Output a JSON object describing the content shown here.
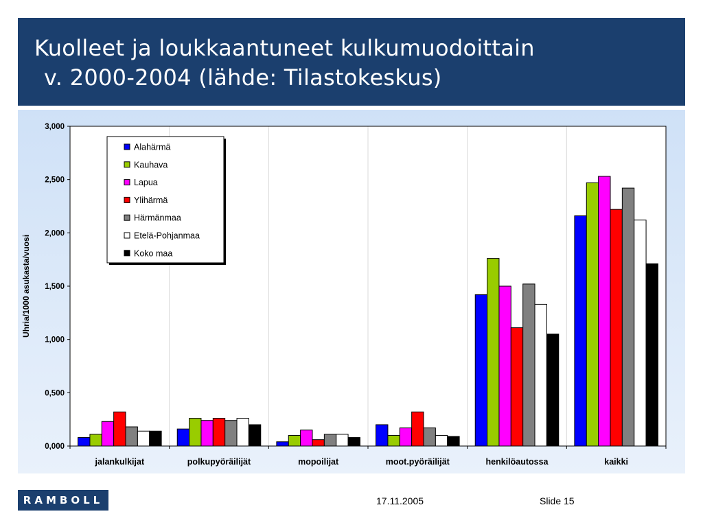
{
  "slide": {
    "title_line1": "Kuolleet ja loukkaantuneet kulkumuodoittain",
    "title_line2": "v. 2000-2004 (lähde: Tilastokeskus)",
    "logo": "RAMBOLL",
    "date": "17.11.2005",
    "slide_number": "Slide 15",
    "colors": {
      "title_band": "#1b3f6e",
      "panel_top": "#cfe1f7",
      "panel_bottom": "#e9f1fb"
    }
  },
  "chart_data": {
    "type": "bar",
    "title": "",
    "xlabel": "",
    "ylabel": "Uhria/1000 asukasta/vuosi",
    "ylim": [
      0,
      3
    ],
    "yticks": [
      0,
      0.5,
      1,
      1.5,
      2,
      2.5,
      3
    ],
    "ytick_labels": [
      "0,000",
      "0,500",
      "1,000",
      "1,500",
      "2,000",
      "2,500",
      "3,000"
    ],
    "grid": "vertical",
    "legend_position": "top-left",
    "categories": [
      "jalankulkijat",
      "polkupyöräilijät",
      "mopoilijat",
      "moot.pyöräilijät",
      "henkilöautossa",
      "kaikki"
    ],
    "series": [
      {
        "name": "Alahärmä",
        "color": "#0000ff",
        "values": [
          0.08,
          0.16,
          0.04,
          0.2,
          1.42,
          2.16
        ]
      },
      {
        "name": "Kauhava",
        "color": "#99cc00",
        "values": [
          0.11,
          0.26,
          0.1,
          0.1,
          1.76,
          2.47
        ]
      },
      {
        "name": "Lapua",
        "color": "#ff00ff",
        "values": [
          0.23,
          0.24,
          0.15,
          0.17,
          1.5,
          2.53
        ]
      },
      {
        "name": "Ylihärmä",
        "color": "#ff0000",
        "values": [
          0.32,
          0.26,
          0.06,
          0.32,
          1.11,
          2.22
        ]
      },
      {
        "name": "Härmänmaa",
        "color": "#808080",
        "values": [
          0.18,
          0.24,
          0.11,
          0.17,
          1.52,
          2.42
        ]
      },
      {
        "name": "Etelä-Pohjanmaa",
        "color": "#ffffff",
        "values": [
          0.14,
          0.26,
          0.11,
          0.1,
          1.33,
          2.12
        ]
      },
      {
        "name": "Koko maa",
        "color": "#000000",
        "values": [
          0.14,
          0.2,
          0.08,
          0.09,
          1.05,
          1.71
        ]
      }
    ]
  }
}
